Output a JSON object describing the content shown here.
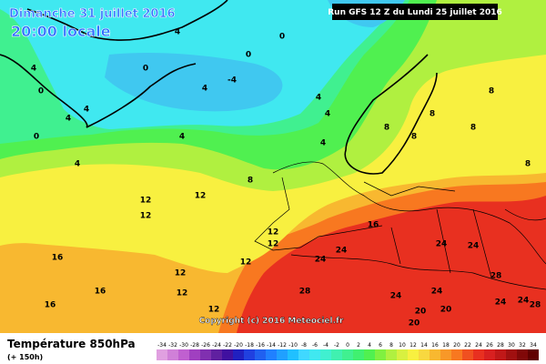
{
  "header": {
    "date": "Dimanche 31 juillet 2016",
    "time": "20:00 locale",
    "run": "Run GFS 12 Z du Lundi 25 juillet 2016",
    "copyright": "Copyright (c) 2016 Meteociel.fr"
  },
  "legend": {
    "title": "Température 850hPa",
    "lead": "(+ 150h)",
    "labels": [
      -34,
      -32,
      -30,
      -28,
      -26,
      -24,
      -22,
      -20,
      -18,
      -16,
      -14,
      -12,
      -10,
      -8,
      -6,
      -4,
      -2,
      0,
      2,
      4,
      6,
      8,
      10,
      12,
      14,
      16,
      18,
      20,
      22,
      24,
      26,
      28,
      30,
      32,
      34
    ],
    "colors": [
      "#e0a0e0",
      "#d080d8",
      "#c060d0",
      "#a040c0",
      "#8030b0",
      "#6020a0",
      "#4010a0",
      "#2020c0",
      "#2040e0",
      "#2060f0",
      "#2080ff",
      "#20a0ff",
      "#20c0ff",
      "#40d8ff",
      "#40e8f0",
      "#40f0d0",
      "#40f0b0",
      "#40f090",
      "#40f070",
      "#50f050",
      "#80f040",
      "#b0f040",
      "#d8f040",
      "#f8f040",
      "#f8d840",
      "#f8b830",
      "#f89828",
      "#f87820",
      "#f05020",
      "#e83020",
      "#d82020",
      "#c01818",
      "#a01010",
      "#800808",
      "#600000"
    ]
  },
  "contour_labels": [
    0,
    0,
    4,
    0,
    -4,
    4,
    4,
    0,
    4,
    4,
    0,
    4,
    4,
    4,
    4,
    4,
    8,
    8,
    8,
    8,
    8,
    8,
    8,
    12,
    12,
    12,
    12,
    12,
    12,
    12,
    12,
    12,
    16,
    16,
    16,
    16,
    24,
    24,
    24,
    24,
    24,
    28,
    28,
    24,
    20,
    20,
    24,
    24,
    28,
    20
  ]
}
